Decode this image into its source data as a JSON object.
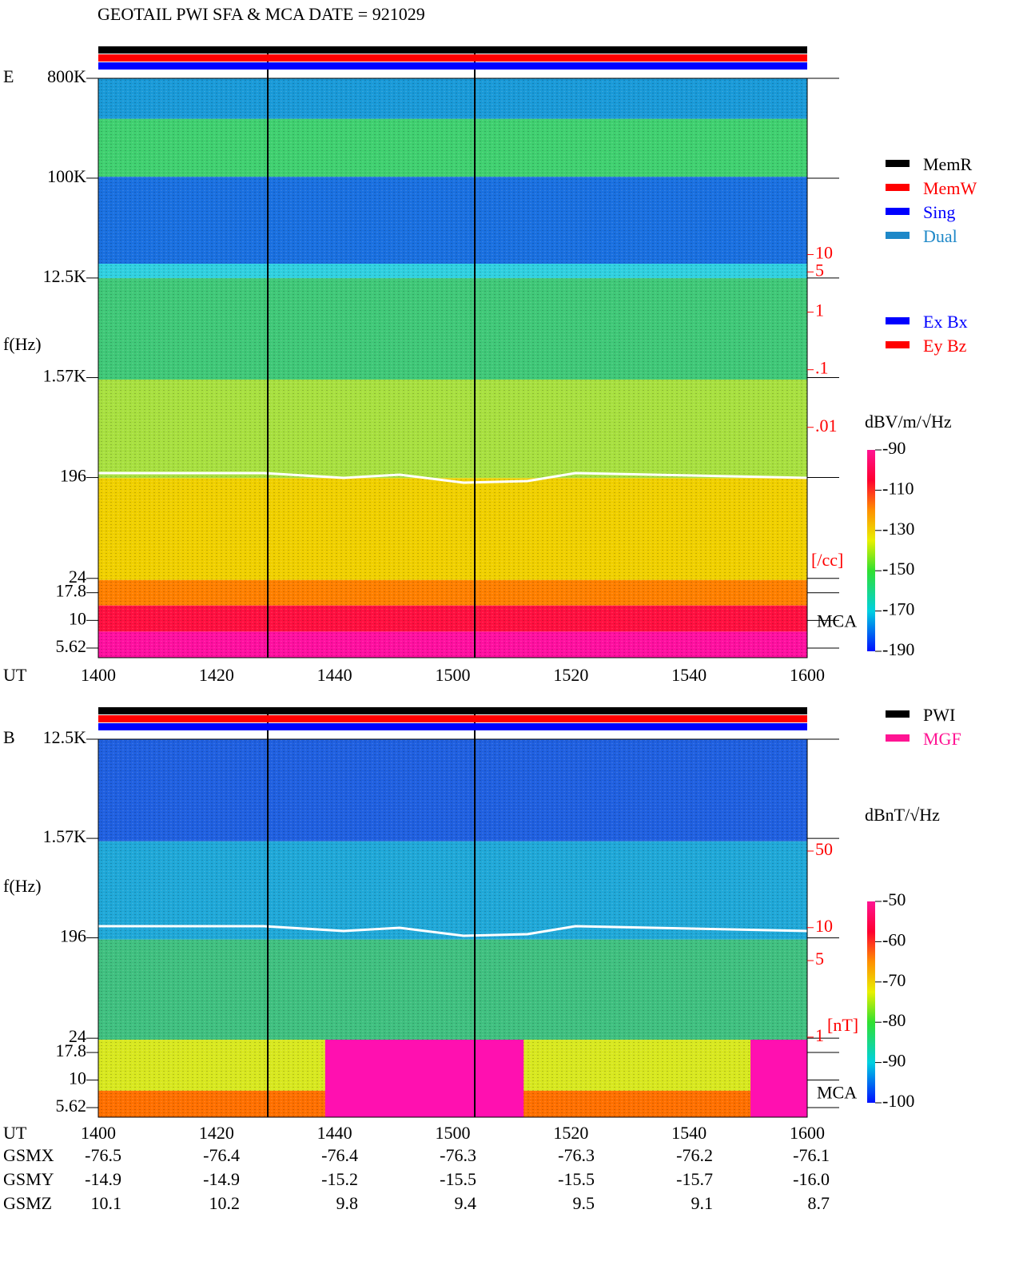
{
  "title": "GEOTAIL  PWI SFA & MCA   DATE = 921029",
  "chart_data": [
    {
      "type": "spectrogram",
      "panel_label": "E",
      "ylabel": "f(Hz)",
      "xlabel": "UT",
      "categories": [
        "1400",
        "1420",
        "1440",
        "1500",
        "1520",
        "1540",
        "1600"
      ],
      "log_scale": true,
      "ylim": [
        800000,
        4.6
      ],
      "yticks": [
        {
          "value": 800000,
          "label": "800K"
        },
        {
          "value": 100000,
          "label": "100K"
        },
        {
          "value": 12500,
          "label": "12.5K"
        },
        {
          "value": 1570,
          "label": "1.57K"
        },
        196,
        24,
        17.8,
        10,
        5.62
      ],
      "y2lim": [
        11500,
        1e-06
      ],
      "y2ticks": [
        10,
        5,
        1,
        {
          "value": 0.1,
          "label": ".1"
        },
        {
          "value": 0.01,
          "label": ".01"
        }
      ],
      "y2label": "[/cc]",
      "y2color": "#ff0000",
      "mca_label": "MCA",
      "colorbar": {
        "label": "dBV/m/√Hz",
        "lim": [
          -90,
          -190
        ],
        "ticks": [
          -90,
          -110,
          -130,
          -150,
          -170,
          -190
        ]
      },
      "legend": [
        {
          "name": "MemR",
          "color": "#000000"
        },
        {
          "name": "MemW",
          "color": "#ff0000"
        },
        {
          "name": "Sing",
          "color": "#0000ff"
        },
        {
          "name": "Dual",
          "color": "#1e88c8"
        }
      ],
      "legend2": [
        {
          "name": "Ex Bx",
          "color": "#0000ff"
        },
        {
          "name": "Ey Bz",
          "color": "#ff0000"
        }
      ]
    },
    {
      "type": "spectrogram",
      "panel_label": "B",
      "ylabel": "f(Hz)",
      "xlabel": "UT",
      "categories": [
        "1400",
        "1420",
        "1440",
        "1500",
        "1520",
        "1540",
        "1600"
      ],
      "log_scale": true,
      "ylim": [
        12500,
        4.6
      ],
      "yticks": [
        {
          "value": 12500,
          "label": "12.5K"
        },
        {
          "value": 1570,
          "label": "1.57K"
        },
        196,
        24,
        17.8,
        10,
        5.62
      ],
      "y2lim": [
        525,
        0.186
      ],
      "y2ticks": [
        50,
        10,
        5,
        1
      ],
      "y2label": "[nT]",
      "y2color": "#ff0000",
      "mca_label": "MCA",
      "colorbar": {
        "label": "dBnT/√Hz",
        "lim": [
          -50,
          -100
        ],
        "ticks": [
          -50,
          -60,
          -70,
          -80,
          -90,
          -100
        ]
      },
      "legend": [
        {
          "name": "PWI",
          "color": "#000000"
        },
        {
          "name": "MGF",
          "color": "#ff1493"
        }
      ]
    }
  ],
  "ephemeris": {
    "rows": [
      {
        "label": "GSMX",
        "values": [
          "-76.5",
          "-76.4",
          "-76.4",
          "-76.3",
          "-76.3",
          "-76.2",
          "-76.1"
        ]
      },
      {
        "label": "GSMY",
        "values": [
          "-14.9",
          "-14.9",
          "-15.2",
          "-15.5",
          "-15.5",
          "-15.7",
          "-16.0"
        ]
      },
      {
        "label": "GSMZ",
        "values": [
          "10.1",
          "10.2",
          "9.8",
          "9.4",
          "9.5",
          "9.1",
          "8.7"
        ]
      }
    ]
  }
}
